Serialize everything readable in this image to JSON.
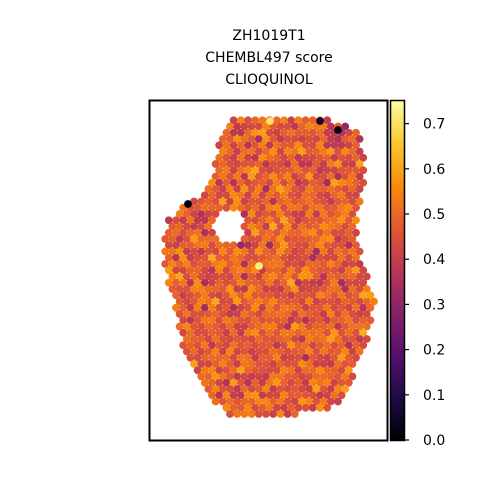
{
  "chart_data": {
    "type": "scatter",
    "title_lines": [
      "ZH1019T1",
      "CHEMBL497 score",
      "CLIOQUINOL"
    ],
    "colormap": "inferno",
    "colorbar": {
      "vmin": 0.0,
      "vmax": 0.75,
      "ticks": [
        "0.0",
        "0.1",
        "0.2",
        "0.3",
        "0.4",
        "0.5",
        "0.6",
        "0.7"
      ]
    },
    "legend": "none",
    "grid": false,
    "xlabel": "",
    "ylabel": "",
    "spots": {
      "layout": "hexagonal spatial transcriptomics spots",
      "typical_score_range": [
        0.3,
        0.65
      ],
      "low_outliers": [
        0.0,
        0.02,
        0.05
      ],
      "high_outliers": [
        0.72,
        0.7
      ]
    }
  }
}
